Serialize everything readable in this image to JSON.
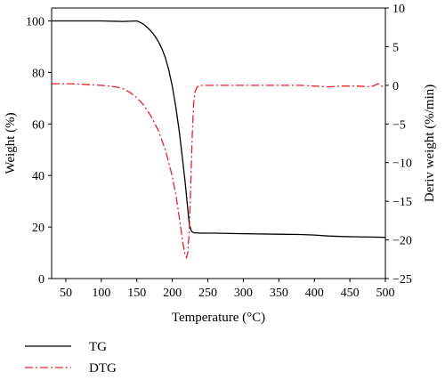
{
  "chart_data": {
    "type": "line",
    "title": "",
    "xlabel": "Temperature (°C)",
    "ylabel_left": "Weight (%)",
    "ylabel_right": "Deriv weight (%/min)",
    "xlim": [
      30,
      500
    ],
    "ylim_left": [
      0,
      105
    ],
    "ylim_right": [
      -25,
      10
    ],
    "x_ticks": [
      50,
      100,
      150,
      200,
      250,
      300,
      350,
      400,
      450,
      500
    ],
    "y_left_ticks": [
      0,
      20,
      40,
      60,
      80,
      100
    ],
    "y_right_ticks": [
      -25,
      -20,
      -15,
      -10,
      -5,
      0,
      5,
      10
    ],
    "grid": false,
    "legend_position": "bottom-left-outside",
    "series": [
      {
        "name": "TG",
        "axis": "left",
        "color": "#000000",
        "style": "solid",
        "x": [
          30,
          60,
          100,
          130,
          150,
          155,
          160,
          165,
          170,
          175,
          180,
          185,
          190,
          195,
          200,
          205,
          210,
          215,
          218,
          221,
          224,
          227,
          230,
          240,
          260,
          300,
          350,
          380,
          400,
          420,
          440,
          460,
          480,
          500
        ],
        "y": [
          100,
          100,
          100,
          99.8,
          100,
          99.4,
          98.6,
          97.4,
          96,
          94.3,
          92.1,
          89.4,
          85.8,
          81,
          74.6,
          66.5,
          56.6,
          44.8,
          37.5,
          29,
          20.8,
          18.3,
          17.8,
          17.6,
          17.6,
          17.4,
          17.2,
          17.1,
          16.9,
          16.5,
          16.3,
          16.2,
          16.1,
          16
        ]
      },
      {
        "name": "DTG",
        "axis": "right",
        "color": "#e8202a",
        "style": "dash-dot",
        "x": [
          30,
          60,
          100,
          120,
          130,
          140,
          150,
          160,
          170,
          180,
          190,
          200,
          205,
          210,
          215,
          218,
          220,
          222,
          224,
          226,
          228,
          230,
          232,
          235,
          240,
          250,
          270,
          300,
          350,
          380,
          400,
          420,
          440,
          460,
          480,
          490,
          500
        ],
        "y": [
          0.2,
          0.2,
          0,
          -0.2,
          -0.4,
          -0.9,
          -1.6,
          -2.6,
          -4,
          -5.8,
          -8.3,
          -11.8,
          -14.2,
          -17.2,
          -20.5,
          -22,
          -22.3,
          -21.5,
          -18.5,
          -12.5,
          -6.5,
          -2.3,
          -0.8,
          -0.2,
          0,
          0,
          0,
          0,
          0,
          0,
          -0.1,
          -0.2,
          -0.1,
          -0.1,
          -0.2,
          0.2,
          -0.4
        ]
      }
    ]
  }
}
